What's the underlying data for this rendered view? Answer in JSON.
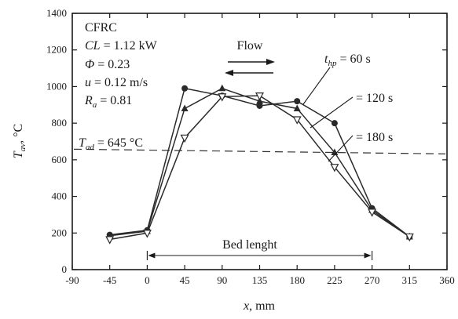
{
  "chart_data": {
    "type": "line",
    "xlabel": "x, mm",
    "ylabel": "T_av, °C",
    "xlim": [
      -90,
      360
    ],
    "ylim": [
      0,
      1400
    ],
    "xticks": [
      -90,
      -45,
      0,
      45,
      90,
      135,
      180,
      225,
      270,
      315,
      360
    ],
    "yticks": [
      0,
      200,
      400,
      600,
      800,
      1000,
      1200,
      1400
    ],
    "series": [
      {
        "name": "t_hp = 60 s",
        "marker": "filled-circle",
        "x": [
          -45,
          0,
          45,
          90,
          135,
          180,
          225,
          270,
          315
        ],
        "y": [
          190,
          215,
          990,
          950,
          895,
          920,
          800,
          335,
          180
        ]
      },
      {
        "name": "t_hp = 120 s",
        "marker": "filled-triangle",
        "x": [
          -45,
          0,
          45,
          90,
          135,
          180,
          225,
          270,
          315
        ],
        "y": [
          185,
          210,
          880,
          990,
          920,
          880,
          640,
          325,
          180
        ]
      },
      {
        "name": "t_hp = 180 s",
        "marker": "open-triangle",
        "x": [
          -45,
          0,
          45,
          90,
          135,
          180,
          225,
          270,
          315
        ],
        "y": [
          165,
          200,
          720,
          945,
          950,
          820,
          560,
          315,
          180
        ]
      }
    ],
    "reference_line": {
      "y": 645,
      "style": "dashed"
    },
    "bed_span": [
      0,
      270
    ]
  },
  "annotations": {
    "material": "CFRC",
    "cl_lhs": "CL",
    "cl_rhs": " = 1.12 kW",
    "phi_lhs": "Φ",
    "phi_rhs": " = 0.23",
    "u_lhs": "u",
    "u_rhs": " = 0.12 m/s",
    "ra_lhs": "R",
    "ra_sub": "a",
    "ra_rhs": " = 0.81",
    "tad_lhs": "T",
    "tad_sub": "ad",
    "tad_rhs": " = 645 °C",
    "flow": "Flow",
    "thp_lhs": "t",
    "thp_sub": "hp",
    "thp_rhs": " = 60 s",
    "label_120": "= 120 s",
    "label_180": "= 180 s",
    "bed_length": "Bed lenght",
    "ylabel_main": "T",
    "ylabel_sub": "av",
    "ylabel_rest": ", °C",
    "xlabel_main": "x",
    "xlabel_rest": ", mm"
  }
}
